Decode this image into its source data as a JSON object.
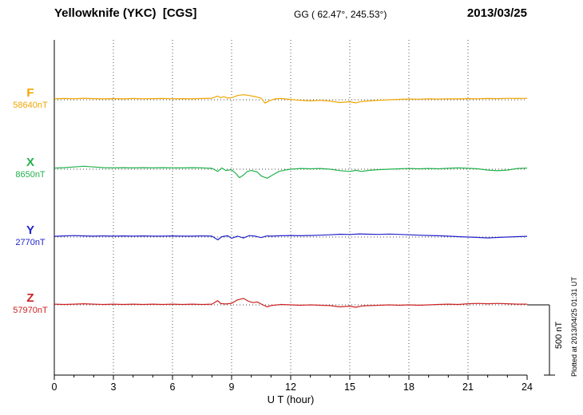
{
  "header": {
    "station_title": "Yellowknife (YKC)  [CGS]",
    "coords": "GG ( 62.47°, 245.53°)",
    "date": "2013/03/25"
  },
  "side_note": "Plotted at 2013/04/25 01:31 UT",
  "chart_data": {
    "type": "line",
    "title": "Yellowknife (YKC) [CGS] magnetogram for 2013/03/25",
    "xlabel": "U T (hour)",
    "ylabel": "",
    "x_range": [
      0,
      24
    ],
    "x_ticks": [
      0,
      3,
      6,
      9,
      12,
      15,
      18,
      21,
      24
    ],
    "grid": "vertical-dotted",
    "scale": {
      "label": "500 nT",
      "nT": 500
    },
    "points_format": "[UT_hour, delta_nT_from_baseline]",
    "units": "nT",
    "series": [
      {
        "name": "F",
        "color": "#f0a500",
        "baseline_nT": 58640,
        "baseline_label": "58640nT",
        "points": [
          [
            0,
            6
          ],
          [
            0.5,
            9
          ],
          [
            1,
            7
          ],
          [
            1.5,
            11
          ],
          [
            2,
            8
          ],
          [
            2.5,
            6
          ],
          [
            3,
            8
          ],
          [
            3.5,
            6
          ],
          [
            4,
            9
          ],
          [
            4.5,
            7
          ],
          [
            5,
            8
          ],
          [
            5.5,
            9
          ],
          [
            6,
            7
          ],
          [
            6.5,
            8
          ],
          [
            7,
            6
          ],
          [
            7.5,
            9
          ],
          [
            8,
            11
          ],
          [
            8.3,
            26
          ],
          [
            8.45,
            14
          ],
          [
            8.6,
            22
          ],
          [
            8.8,
            12
          ],
          [
            9,
            14
          ],
          [
            9.3,
            30
          ],
          [
            9.6,
            36
          ],
          [
            9.9,
            30
          ],
          [
            10.2,
            22
          ],
          [
            10.5,
            12
          ],
          [
            10.7,
            -24
          ],
          [
            10.9,
            -8
          ],
          [
            11.2,
            6
          ],
          [
            11.5,
            9
          ],
          [
            12,
            2
          ],
          [
            12.5,
            -4
          ],
          [
            13,
            -8
          ],
          [
            13.5,
            -4
          ],
          [
            14,
            -9
          ],
          [
            14.5,
            -20
          ],
          [
            15,
            -14
          ],
          [
            15.3,
            -22
          ],
          [
            15.6,
            -12
          ],
          [
            16,
            -8
          ],
          [
            16.5,
            -4
          ],
          [
            17,
            0
          ],
          [
            17.5,
            3
          ],
          [
            18,
            5
          ],
          [
            18.5,
            4
          ],
          [
            19,
            6
          ],
          [
            19.5,
            5
          ],
          [
            20,
            7
          ],
          [
            20.5,
            6
          ],
          [
            21,
            8
          ],
          [
            21.5,
            7
          ],
          [
            22,
            9
          ],
          [
            22.5,
            8
          ],
          [
            23,
            10
          ],
          [
            23.5,
            9
          ],
          [
            24,
            10
          ]
        ]
      },
      {
        "name": "X",
        "color": "#22b14c",
        "baseline_nT": 8650,
        "baseline_label": "8650nT",
        "points": [
          [
            0,
            8
          ],
          [
            0.5,
            11
          ],
          [
            1,
            16
          ],
          [
            1.5,
            21
          ],
          [
            2,
            16
          ],
          [
            2.5,
            11
          ],
          [
            3,
            9
          ],
          [
            3.5,
            11
          ],
          [
            4,
            9
          ],
          [
            4.5,
            11
          ],
          [
            5,
            9
          ],
          [
            5.5,
            11
          ],
          [
            6,
            9
          ],
          [
            6.5,
            9
          ],
          [
            7,
            11
          ],
          [
            7.5,
            9
          ],
          [
            8,
            6
          ],
          [
            8.3,
            -16
          ],
          [
            8.5,
            9
          ],
          [
            8.7,
            -9
          ],
          [
            9,
            -4
          ],
          [
            9.2,
            -28
          ],
          [
            9.4,
            -60
          ],
          [
            9.6,
            -42
          ],
          [
            9.8,
            -16
          ],
          [
            10,
            -9
          ],
          [
            10.3,
            -20
          ],
          [
            10.5,
            -48
          ],
          [
            10.8,
            -64
          ],
          [
            11.1,
            -40
          ],
          [
            11.4,
            -16
          ],
          [
            11.7,
            -6
          ],
          [
            12,
            0
          ],
          [
            12.5,
            5
          ],
          [
            13,
            3
          ],
          [
            13.5,
            5
          ],
          [
            14,
            0
          ],
          [
            14.5,
            -10
          ],
          [
            15,
            -16
          ],
          [
            15.3,
            -8
          ],
          [
            15.6,
            -16
          ],
          [
            16,
            -8
          ],
          [
            16.5,
            -3
          ],
          [
            17,
            0
          ],
          [
            17.5,
            3
          ],
          [
            18,
            5
          ],
          [
            18.5,
            3
          ],
          [
            19,
            5
          ],
          [
            19.5,
            3
          ],
          [
            20,
            6
          ],
          [
            20.5,
            9
          ],
          [
            21,
            6
          ],
          [
            21.5,
            3
          ],
          [
            22,
            -6
          ],
          [
            22.5,
            -11
          ],
          [
            23,
            -6
          ],
          [
            23.5,
            5
          ],
          [
            24,
            8
          ]
        ]
      },
      {
        "name": "Y",
        "color": "#2222cc",
        "baseline_nT": 2770,
        "baseline_label": "2770nT",
        "points": [
          [
            0,
            5
          ],
          [
            0.5,
            8
          ],
          [
            1,
            10
          ],
          [
            1.5,
            8
          ],
          [
            2,
            6
          ],
          [
            2.5,
            8
          ],
          [
            3,
            6
          ],
          [
            3.5,
            8
          ],
          [
            4,
            6
          ],
          [
            4.5,
            8
          ],
          [
            5,
            6
          ],
          [
            5.5,
            6
          ],
          [
            6,
            8
          ],
          [
            6.5,
            6
          ],
          [
            7,
            6
          ],
          [
            7.5,
            8
          ],
          [
            8,
            6
          ],
          [
            8.3,
            -20
          ],
          [
            8.5,
            2
          ],
          [
            8.8,
            9
          ],
          [
            9,
            -9
          ],
          [
            9.3,
            6
          ],
          [
            9.6,
            -7
          ],
          [
            9.9,
            10
          ],
          [
            10.2,
            6
          ],
          [
            10.5,
            -4
          ],
          [
            10.8,
            8
          ],
          [
            11,
            6
          ],
          [
            11.5,
            9
          ],
          [
            12,
            11
          ],
          [
            12.5,
            9
          ],
          [
            13,
            11
          ],
          [
            13.5,
            13
          ],
          [
            14,
            16
          ],
          [
            14.5,
            20
          ],
          [
            15,
            18
          ],
          [
            15.5,
            22
          ],
          [
            16,
            20
          ],
          [
            16.5,
            19
          ],
          [
            17,
            21
          ],
          [
            17.5,
            19
          ],
          [
            18,
            16
          ],
          [
            18.5,
            13
          ],
          [
            19,
            11
          ],
          [
            19.5,
            9
          ],
          [
            20,
            6
          ],
          [
            20.5,
            3
          ],
          [
            21,
            0
          ],
          [
            21.5,
            -3
          ],
          [
            22,
            -6
          ],
          [
            22.5,
            -3
          ],
          [
            23,
            0
          ],
          [
            23.5,
            3
          ],
          [
            24,
            5
          ]
        ]
      },
      {
        "name": "Z",
        "color": "#cc2222",
        "baseline_nT": 57970,
        "baseline_label": "57970nT",
        "points": [
          [
            0,
            5
          ],
          [
            0.5,
            3
          ],
          [
            1,
            5
          ],
          [
            1.5,
            8
          ],
          [
            2,
            5
          ],
          [
            2.5,
            3
          ],
          [
            3,
            5
          ],
          [
            3.5,
            3
          ],
          [
            4,
            5
          ],
          [
            4.5,
            3
          ],
          [
            5,
            5
          ],
          [
            5.5,
            3
          ],
          [
            6,
            5
          ],
          [
            6.5,
            3
          ],
          [
            7,
            5
          ],
          [
            7.5,
            3
          ],
          [
            8,
            5
          ],
          [
            8.3,
            30
          ],
          [
            8.45,
            9
          ],
          [
            8.7,
            6
          ],
          [
            9,
            11
          ],
          [
            9.3,
            36
          ],
          [
            9.6,
            46
          ],
          [
            9.85,
            26
          ],
          [
            10.1,
            16
          ],
          [
            10.3,
            21
          ],
          [
            10.5,
            6
          ],
          [
            10.8,
            -14
          ],
          [
            11,
            -5
          ],
          [
            11.5,
            3
          ],
          [
            12,
            0
          ],
          [
            12.5,
            -3
          ],
          [
            13,
            0
          ],
          [
            13.5,
            -3
          ],
          [
            14,
            -5
          ],
          [
            14.5,
            -14
          ],
          [
            15,
            -9
          ],
          [
            15.3,
            -17
          ],
          [
            15.6,
            -8
          ],
          [
            16,
            -5
          ],
          [
            16.5,
            -3
          ],
          [
            17,
            0
          ],
          [
            17.5,
            -3
          ],
          [
            18,
            0
          ],
          [
            18.5,
            -3
          ],
          [
            19,
            0
          ],
          [
            19.5,
            3
          ],
          [
            20,
            5
          ],
          [
            20.5,
            3
          ],
          [
            21,
            8
          ],
          [
            21.5,
            10
          ],
          [
            22,
            8
          ],
          [
            22.5,
            10
          ],
          [
            23,
            8
          ],
          [
            23.5,
            5
          ],
          [
            24,
            5
          ]
        ]
      }
    ]
  }
}
